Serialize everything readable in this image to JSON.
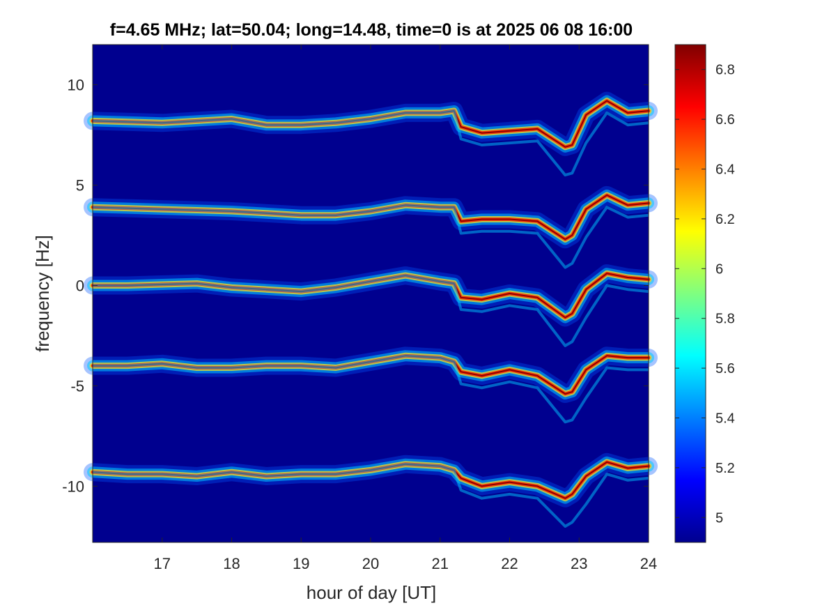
{
  "chart_data": {
    "type": "heatmap",
    "title": "f=4.65 MHz;  lat=50.04; long=14.48, time=0 is at 2025 06 08 16:00",
    "xlabel": "hour of day [UT]",
    "ylabel": "frequency [Hz]",
    "xlim": [
      16.0,
      24.0
    ],
    "ylim": [
      -12.8,
      12.0
    ],
    "xticks": [
      "17",
      "18",
      "19",
      "20",
      "21",
      "22",
      "23",
      "24"
    ],
    "xtick_values": [
      17,
      18,
      19,
      20,
      21,
      22,
      23,
      24
    ],
    "yticks": [
      "10",
      "5",
      "0",
      "-5",
      "-10"
    ],
    "ytick_values": [
      10,
      5,
      0,
      -5,
      -10
    ],
    "colormap": "jet",
    "clim": [
      4.9,
      6.9
    ],
    "colorbar_ticks": [
      "6.8",
      "6.6",
      "6.4",
      "6.2",
      "6",
      "5.8",
      "5.6",
      "5.4",
      "5.2",
      "5"
    ],
    "colorbar_tick_values": [
      6.8,
      6.6,
      6.4,
      6.2,
      6.0,
      5.8,
      5.6,
      5.4,
      5.2,
      5.0
    ],
    "background_value": 4.9,
    "series": [
      {
        "x": [
          16.0,
          16.5,
          17.0,
          17.5,
          18.0,
          18.5,
          19.0,
          19.5,
          20.0,
          20.5,
          21.0,
          21.2,
          21.3,
          21.6,
          22.0,
          22.4,
          22.8,
          22.9,
          23.1,
          23.4,
          23.7,
          24.0
        ],
        "values": [
          8.2,
          8.15,
          8.1,
          8.2,
          8.3,
          8.0,
          8.0,
          8.1,
          8.3,
          8.6,
          8.6,
          8.7,
          7.9,
          7.6,
          7.7,
          7.8,
          6.9,
          7.0,
          8.5,
          9.2,
          8.6,
          8.7
        ]
      },
      {
        "x": [
          16.0,
          16.5,
          17.0,
          17.5,
          18.0,
          18.5,
          19.0,
          19.5,
          20.0,
          20.5,
          21.0,
          21.2,
          21.3,
          21.6,
          22.0,
          22.4,
          22.8,
          22.9,
          23.1,
          23.4,
          23.7,
          24.0
        ],
        "values": [
          3.9,
          3.85,
          3.8,
          3.75,
          3.7,
          3.6,
          3.5,
          3.5,
          3.7,
          4.0,
          3.9,
          3.9,
          3.2,
          3.3,
          3.3,
          3.2,
          2.3,
          2.5,
          3.8,
          4.5,
          4.0,
          4.1
        ]
      },
      {
        "x": [
          16.0,
          16.5,
          17.0,
          17.5,
          18.0,
          18.5,
          19.0,
          19.5,
          20.0,
          20.5,
          21.0,
          21.2,
          21.3,
          21.6,
          22.0,
          22.4,
          22.8,
          22.9,
          23.1,
          23.4,
          23.7,
          24.0
        ],
        "values": [
          0.0,
          0.0,
          0.05,
          0.1,
          -0.1,
          -0.2,
          -0.3,
          -0.1,
          0.2,
          0.5,
          0.2,
          0.1,
          -0.6,
          -0.7,
          -0.4,
          -0.6,
          -1.6,
          -1.4,
          -0.2,
          0.6,
          0.4,
          0.3
        ]
      },
      {
        "x": [
          16.0,
          16.5,
          17.0,
          17.5,
          18.0,
          18.5,
          19.0,
          19.5,
          20.0,
          20.5,
          21.0,
          21.2,
          21.3,
          21.6,
          22.0,
          22.4,
          22.8,
          22.9,
          23.1,
          23.4,
          23.7,
          24.0
        ],
        "values": [
          -4.0,
          -4.0,
          -3.9,
          -4.1,
          -4.1,
          -4.0,
          -4.0,
          -4.1,
          -3.8,
          -3.5,
          -3.6,
          -3.8,
          -4.3,
          -4.5,
          -4.2,
          -4.5,
          -5.4,
          -5.3,
          -4.2,
          -3.5,
          -3.6,
          -3.6
        ]
      },
      {
        "x": [
          16.0,
          16.5,
          17.0,
          17.5,
          18.0,
          18.5,
          19.0,
          19.5,
          20.0,
          20.5,
          21.0,
          21.2,
          21.3,
          21.6,
          22.0,
          22.4,
          22.8,
          22.9,
          23.1,
          23.4,
          23.7,
          24.0
        ],
        "values": [
          -9.3,
          -9.4,
          -9.4,
          -9.5,
          -9.3,
          -9.5,
          -9.4,
          -9.4,
          -9.2,
          -8.9,
          -9.0,
          -9.2,
          -9.6,
          -10.0,
          -9.8,
          -10.0,
          -10.6,
          -10.4,
          -9.5,
          -8.8,
          -9.1,
          -9.0
        ]
      }
    ]
  },
  "colors": {
    "background": "#00008f",
    "axis": "#262626"
  }
}
